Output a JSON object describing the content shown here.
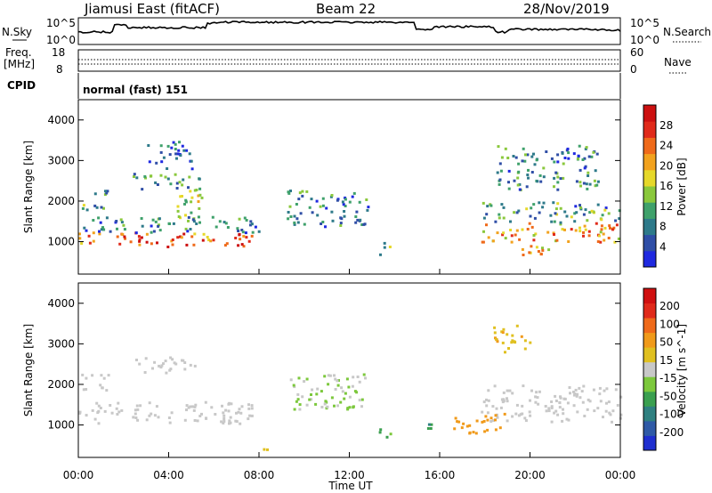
{
  "header": {
    "station": "Jiamusi East (fitACF)",
    "beam": "Beam 22",
    "date": "28/Nov/2019"
  },
  "top_panel": {
    "nsky_label": "N.Sky",
    "nsearch_label": "N.Search",
    "nsky_ticks": [
      "10^5",
      "10^0"
    ],
    "nsearch_ticks": [
      "10^5",
      "10^0"
    ],
    "freq_label_line1": "Freq.",
    "freq_label_line2": "[MHz]",
    "freq_ticks": [
      "18",
      "8"
    ],
    "nave_label": "Nave",
    "nave_ticks": [
      "60",
      "0"
    ],
    "cpid_label": "CPID",
    "cpid_value": "normal (fast) 151"
  },
  "axes": {
    "xlabel": "Time UT",
    "x_ticks": [
      "00:00",
      "04:00",
      "08:00",
      "12:00",
      "16:00",
      "20:00",
      "00:00"
    ],
    "ylabel": "Slant Range [km]",
    "y_ticks": [
      "1000",
      "2000",
      "3000",
      "4000"
    ]
  },
  "colorbars": {
    "power": {
      "label": "Power [dB]",
      "ticks": [
        "28",
        "24",
        "20",
        "16",
        "12",
        "8",
        "4"
      ],
      "colors": [
        "#1f29e0",
        "#2f4ea6",
        "#2e7a8a",
        "#3fa16b",
        "#8ac83c",
        "#e6d82a",
        "#f2a21e",
        "#ef6a1a",
        "#e02a1a",
        "#cc1010"
      ]
    },
    "velocity": {
      "label": "Velocity [m s^-1]",
      "ticks": [
        "200",
        "100",
        "50",
        "15",
        "-15",
        "-50",
        "-100",
        "-200"
      ],
      "colors": [
        "#1f2fcf",
        "#2f5aa6",
        "#2f8080",
        "#3a9f4f",
        "#7cc83c",
        "#c8c8c8",
        "#e0c020",
        "#f09a1a",
        "#ef6a1a",
        "#e02a1a",
        "#d01010"
      ]
    }
  },
  "chart_data": [
    {
      "type": "heatmap",
      "title": "Power [dB]",
      "xlabel": "Time UT",
      "ylabel": "Slant Range [km]",
      "xlim": [
        0,
        24
      ],
      "ylim": [
        200,
        4500
      ],
      "clim": [
        0,
        32
      ],
      "blobs": [
        {
          "t0": 0.0,
          "t1": 8.0,
          "r0": 900,
          "r1": 1250,
          "v": 25
        },
        {
          "t0": 0.0,
          "t1": 8.0,
          "r0": 1250,
          "r1": 1650,
          "v": 8
        },
        {
          "t0": 0.1,
          "t1": 1.3,
          "r0": 1800,
          "r1": 2300,
          "v": 10
        },
        {
          "t0": 2.4,
          "t1": 5.4,
          "r0": 2300,
          "r1": 2700,
          "v": 10
        },
        {
          "t0": 4.2,
          "t1": 5.5,
          "r0": 1600,
          "r1": 2500,
          "v": 16
        },
        {
          "t0": 3.0,
          "t1": 5.0,
          "r0": 2800,
          "r1": 3500,
          "v": 6
        },
        {
          "t0": 9.2,
          "t1": 12.8,
          "r0": 1400,
          "r1": 2300,
          "v": 8
        },
        {
          "t0": 13.2,
          "t1": 13.8,
          "r0": 700,
          "r1": 1000,
          "v": 14
        },
        {
          "t0": 17.8,
          "t1": 24.0,
          "r0": 1000,
          "r1": 1500,
          "v": 22
        },
        {
          "t0": 17.8,
          "t1": 24.0,
          "r0": 1500,
          "r1": 2000,
          "v": 10
        },
        {
          "t0": 18.5,
          "t1": 23.0,
          "r0": 2300,
          "r1": 3400,
          "v": 9
        },
        {
          "t0": 19.2,
          "t1": 20.8,
          "r0": 700,
          "r1": 1100,
          "v": 20
        }
      ]
    },
    {
      "type": "heatmap",
      "title": "Velocity [m s^-1]",
      "xlabel": "Time UT",
      "ylabel": "Slant Range [km]",
      "xlim": [
        0,
        24
      ],
      "ylim": [
        200,
        4500
      ],
      "clim": [
        -250,
        250
      ],
      "blobs": [
        {
          "t0": 0.0,
          "t1": 7.8,
          "r0": 1050,
          "r1": 1600,
          "v": 0
        },
        {
          "t0": 2.4,
          "t1": 5.4,
          "r0": 2300,
          "r1": 2700,
          "v": 0
        },
        {
          "t0": 0.1,
          "t1": 1.3,
          "r0": 1800,
          "r1": 2300,
          "v": 0
        },
        {
          "t0": 9.2,
          "t1": 12.8,
          "r0": 1400,
          "r1": 2300,
          "v": -20
        },
        {
          "t0": 8.1,
          "t1": 8.6,
          "r0": 300,
          "r1": 500,
          "v": 60
        },
        {
          "t0": 13.2,
          "t1": 13.8,
          "r0": 700,
          "r1": 1000,
          "v": -80
        },
        {
          "t0": 15.0,
          "t1": 15.6,
          "r0": 900,
          "r1": 1200,
          "v": -100
        },
        {
          "t0": 17.8,
          "t1": 24.0,
          "r0": 1100,
          "r1": 2000,
          "v": 0
        },
        {
          "t0": 18.3,
          "t1": 20.0,
          "r0": 2800,
          "r1": 3500,
          "v": 60
        },
        {
          "t0": 16.5,
          "t1": 19.0,
          "r0": 800,
          "r1": 1300,
          "v": 90
        }
      ]
    }
  ]
}
